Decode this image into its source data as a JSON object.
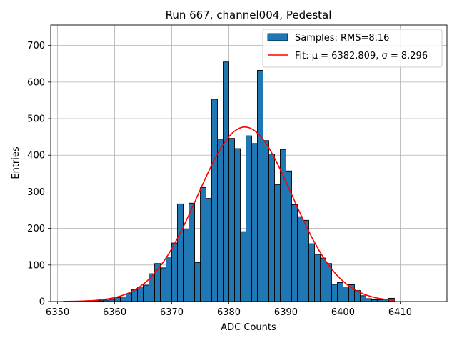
{
  "chart_data": {
    "type": "bar",
    "title": "Run 667, channel004, Pedestal",
    "xlabel": "ADC Counts",
    "ylabel": "Entries",
    "xlim": [
      6348.8,
      6418.2
    ],
    "ylim": [
      0,
      756
    ],
    "grid": true,
    "legend_placement": "top-right",
    "colors": {
      "bars": "#1f77b4",
      "bar_edge": "#000000",
      "fit": "#ff0000",
      "grid": "#b0b0b0"
    },
    "xticks": [
      6350,
      6360,
      6370,
      6380,
      6390,
      6400,
      6410
    ],
    "yticks": [
      0,
      100,
      200,
      300,
      400,
      500,
      600,
      700
    ],
    "bin_width": 1,
    "histogram": {
      "name": "Samples: RMS=8.16",
      "bin_left_edges": [
        6351,
        6352,
        6353,
        6354,
        6355,
        6356,
        6357,
        6358,
        6359,
        6360,
        6361,
        6362,
        6363,
        6364,
        6365,
        6366,
        6367,
        6368,
        6369,
        6370,
        6371,
        6372,
        6373,
        6374,
        6375,
        6376,
        6377,
        6378,
        6379,
        6380,
        6381,
        6382,
        6383,
        6384,
        6385,
        6386,
        6387,
        6388,
        6389,
        6390,
        6391,
        6392,
        6393,
        6394,
        6395,
        6396,
        6397,
        6398,
        6399,
        6400,
        6401,
        6402,
        6403,
        6404,
        6405,
        6406,
        6407,
        6408
      ],
      "values": [
        0,
        0,
        0,
        0,
        0,
        1,
        2,
        4,
        6,
        11,
        13,
        22,
        33,
        40,
        45,
        76,
        104,
        92,
        122,
        160,
        267,
        198,
        269,
        107,
        312,
        282,
        553,
        444,
        655,
        446,
        418,
        191,
        453,
        432,
        632,
        440,
        403,
        320,
        416,
        357,
        265,
        232,
        222,
        158,
        129,
        119,
        104,
        47,
        52,
        40,
        46,
        30,
        16,
        8,
        5,
        5,
        6,
        9
      ]
    },
    "fit": {
      "name": "Fit: μ = 6382.809, σ = 8.296",
      "mu": 6382.809,
      "sigma": 8.296,
      "amplitude": 477,
      "x_range": [
        6351,
        6409
      ]
    }
  }
}
